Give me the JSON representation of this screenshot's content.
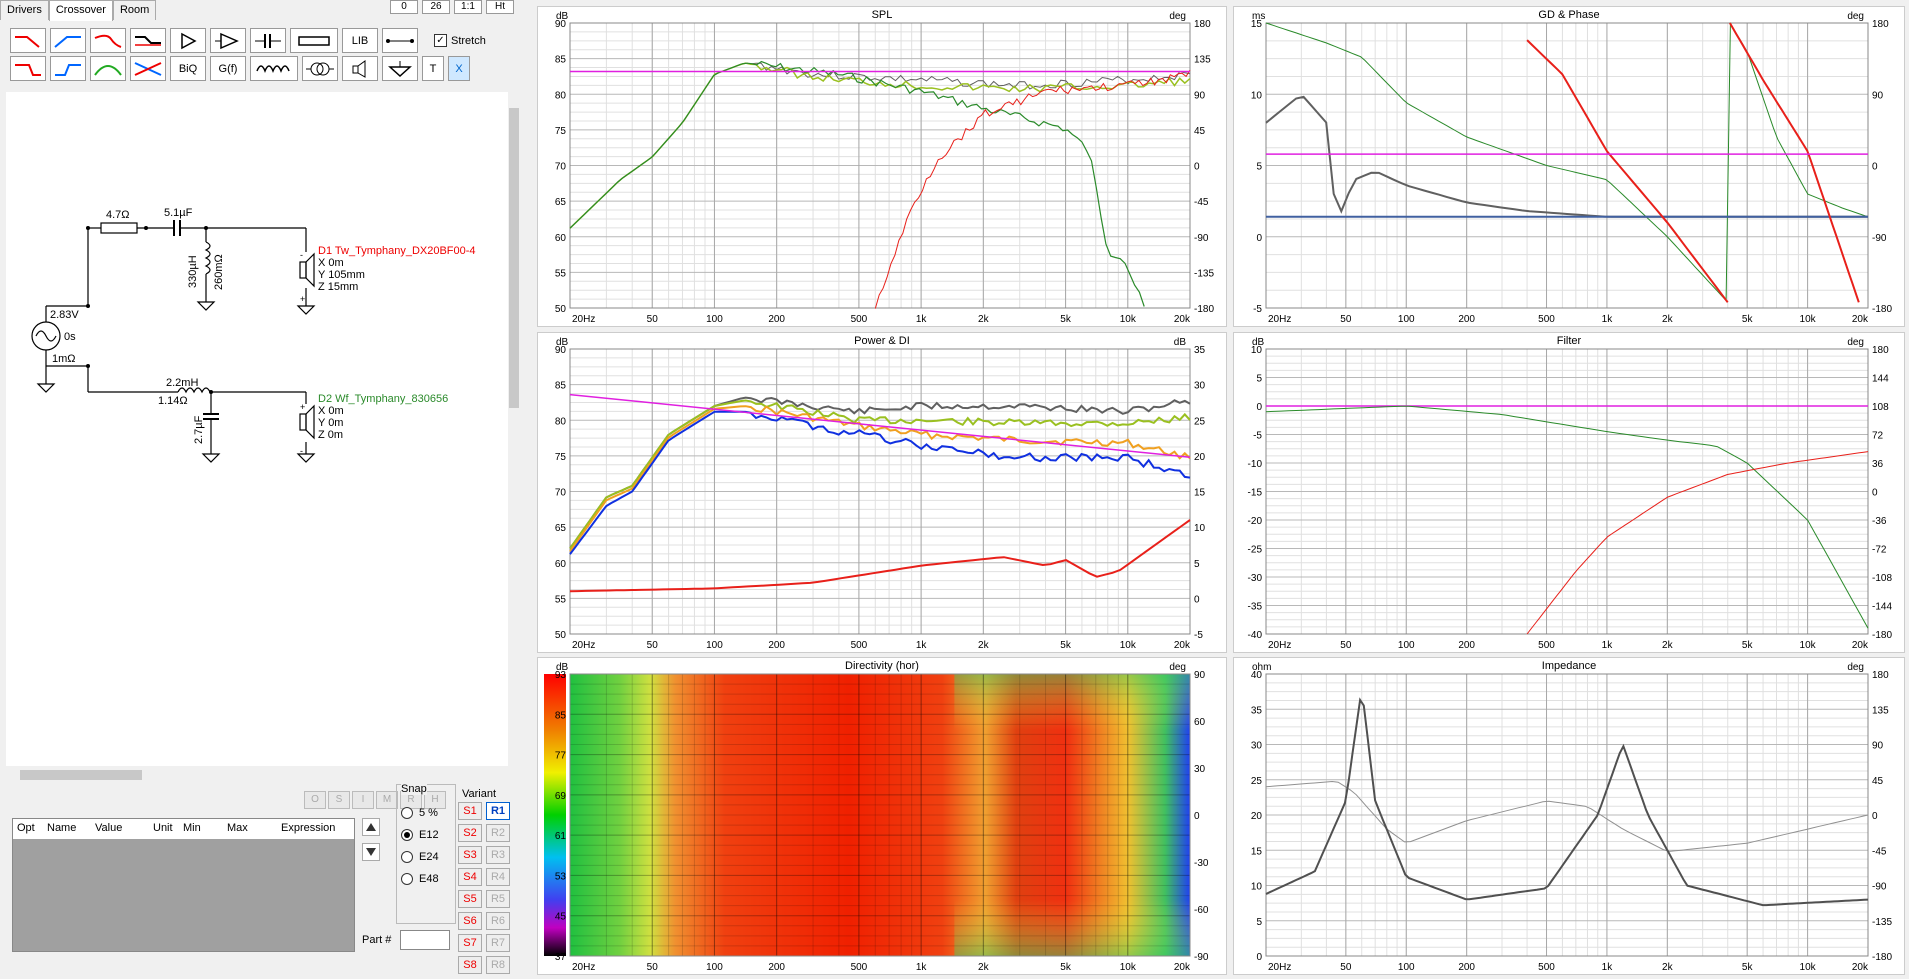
{
  "tabs": [
    {
      "label": "Drivers"
    },
    {
      "label": "Crossover"
    },
    {
      "label": "Room"
    }
  ],
  "top_buttons": [
    "0",
    "26",
    "1:1",
    "Ht"
  ],
  "tool_labels": {
    "lib": "LIB",
    "biq": "BiQ",
    "gf": "G(f)",
    "t": "T",
    "x": "X"
  },
  "stretch_label": "Stretch",
  "schematic": {
    "source_v": "2.83V",
    "source_delay": "0s",
    "source_r": "1mΩ",
    "r1": "4.7Ω",
    "c1": "5.1µF",
    "l1": "330µH",
    "l1r": "260mΩ",
    "d1_name": "D1 Tw_Tymphany_DX20BF00-4",
    "d1_x": "X 0m",
    "d1_y": "Y 105mm",
    "d1_z": "Z 15mm",
    "l2": "2.2mH",
    "l2r": "1.14Ω",
    "c2": "2.7µF",
    "d2_name": "D2 Wf_Tymphany_830656",
    "d2_x": "X 0m",
    "d2_y": "Y 0m",
    "d2_z": "Z 0m"
  },
  "opt_buttons": [
    "O",
    "S",
    "I",
    "M",
    "R",
    "H"
  ],
  "opt_columns": [
    "Opt",
    "Name",
    "Value",
    "Unit",
    "Min",
    "Max",
    "Expression"
  ],
  "snap": {
    "title": "Snap",
    "options": [
      "5 %",
      "E12",
      "E24",
      "E48"
    ],
    "selected": 1
  },
  "part_label": "Part #",
  "variant": {
    "title": "Variant",
    "s": [
      "S1",
      "S2",
      "S3",
      "S4",
      "S5",
      "S6",
      "S7",
      "S8"
    ],
    "r": [
      "R1",
      "R2",
      "R3",
      "R4",
      "R5",
      "R6",
      "R7",
      "R8"
    ],
    "active": "R1"
  },
  "freq_ticks": [
    "20Hz",
    "50",
    "100",
    "200",
    "500",
    "1k",
    "2k",
    "5k",
    "10k",
    "20k"
  ],
  "graphs": {
    "spl": {
      "title": "SPL",
      "left_unit": "dB",
      "right_unit": "deg",
      "left_ticks": [
        "90",
        "85",
        "80",
        "75",
        "70",
        "65",
        "60",
        "55",
        "50"
      ],
      "right_ticks": [
        "180",
        "135",
        "90",
        "45",
        "0",
        "-45",
        "-90",
        "-135",
        "-180"
      ]
    },
    "gd": {
      "title": "GD & Phase",
      "left_unit": "ms",
      "right_unit": "deg",
      "left_ticks": [
        "15",
        "10",
        "5",
        "0",
        "-5"
      ],
      "right_ticks": [
        "180",
        "90",
        "0",
        "-90",
        "-180"
      ]
    },
    "power": {
      "title": "Power & DI",
      "left_unit": "dB",
      "right_unit": "dB",
      "left_ticks": [
        "90",
        "85",
        "80",
        "75",
        "70",
        "65",
        "60",
        "55",
        "50"
      ],
      "right_ticks": [
        "35",
        "30",
        "25",
        "20",
        "15",
        "10",
        "5",
        "0",
        "-5"
      ]
    },
    "filter": {
      "title": "Filter",
      "left_unit": "dB",
      "right_unit": "deg",
      "left_ticks": [
        "10",
        "5",
        "0",
        "-5",
        "-10",
        "-15",
        "-20",
        "-25",
        "-30",
        "-35",
        "-40"
      ],
      "right_ticks": [
        "180",
        "144",
        "108",
        "72",
        "36",
        "0",
        "-36",
        "-72",
        "-108",
        "-144",
        "-180"
      ]
    },
    "dir": {
      "title": "Directivity (hor)",
      "left_unit": "dB",
      "right_unit": "deg",
      "left_ticks": [
        "93",
        "85",
        "77",
        "69",
        "61",
        "53",
        "45",
        "37"
      ],
      "right_ticks": [
        "90",
        "60",
        "30",
        "0",
        "-30",
        "-60",
        "-90"
      ]
    },
    "imp": {
      "title": "Impedance",
      "left_unit": "ohm",
      "right_unit": "deg",
      "left_ticks": [
        "40",
        "35",
        "30",
        "25",
        "20",
        "15",
        "10",
        "5",
        "0"
      ],
      "right_ticks": [
        "180",
        "135",
        "90",
        "45",
        "0",
        "-45",
        "-90",
        "-135",
        "-180"
      ]
    }
  },
  "colors": {
    "green": "#2a8a2a",
    "red": "#e8201a",
    "lime": "#9ac020",
    "gray": "#606060",
    "magenta": "#e020e0",
    "blue": "#1030e0",
    "orange": "#f0a020"
  }
}
